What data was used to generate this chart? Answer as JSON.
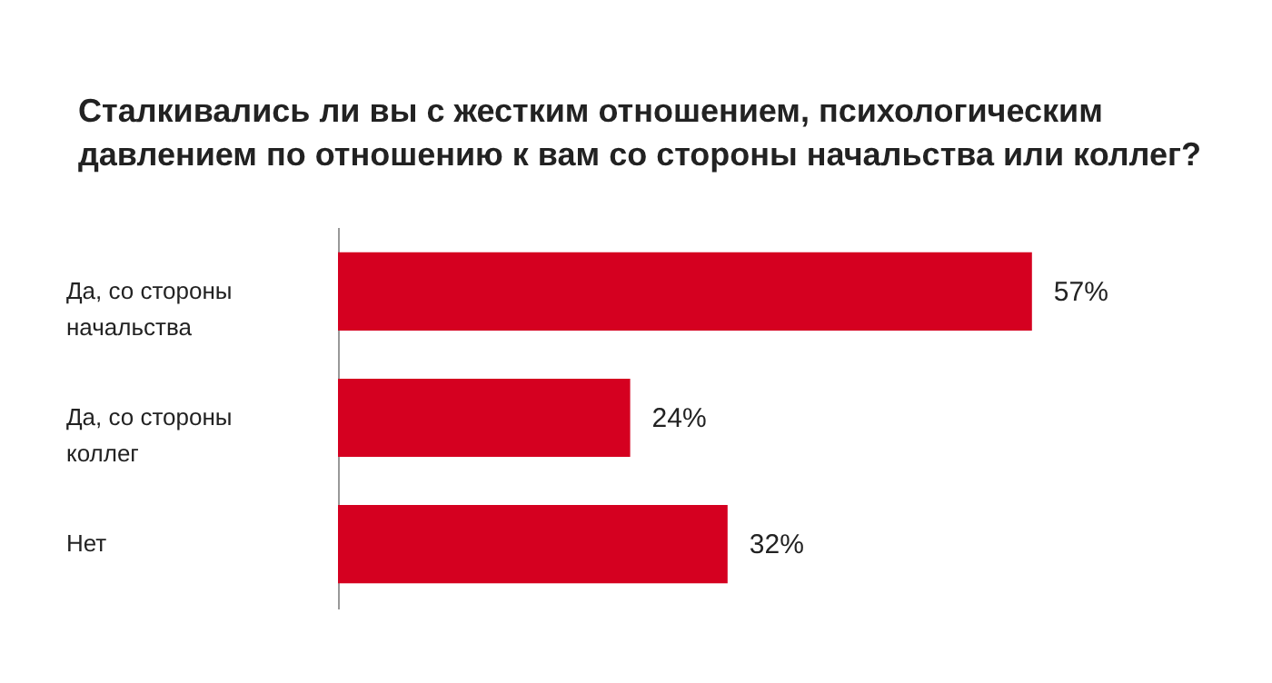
{
  "chart_data": {
    "type": "bar",
    "orientation": "horizontal",
    "title": "Сталкивались ли вы с жестким отношением, психологическим\nдавлением по отношению к вам со стороны начальства или коллег?",
    "categories": [
      "Да, со стороны\nначальства",
      "Да, со стороны\nколлег",
      "Нет"
    ],
    "values": [
      57,
      24,
      32
    ],
    "value_labels": [
      "57%",
      "24%",
      "32%"
    ],
    "color": "#d50020",
    "tick_labels": "y",
    "grid": false
  }
}
